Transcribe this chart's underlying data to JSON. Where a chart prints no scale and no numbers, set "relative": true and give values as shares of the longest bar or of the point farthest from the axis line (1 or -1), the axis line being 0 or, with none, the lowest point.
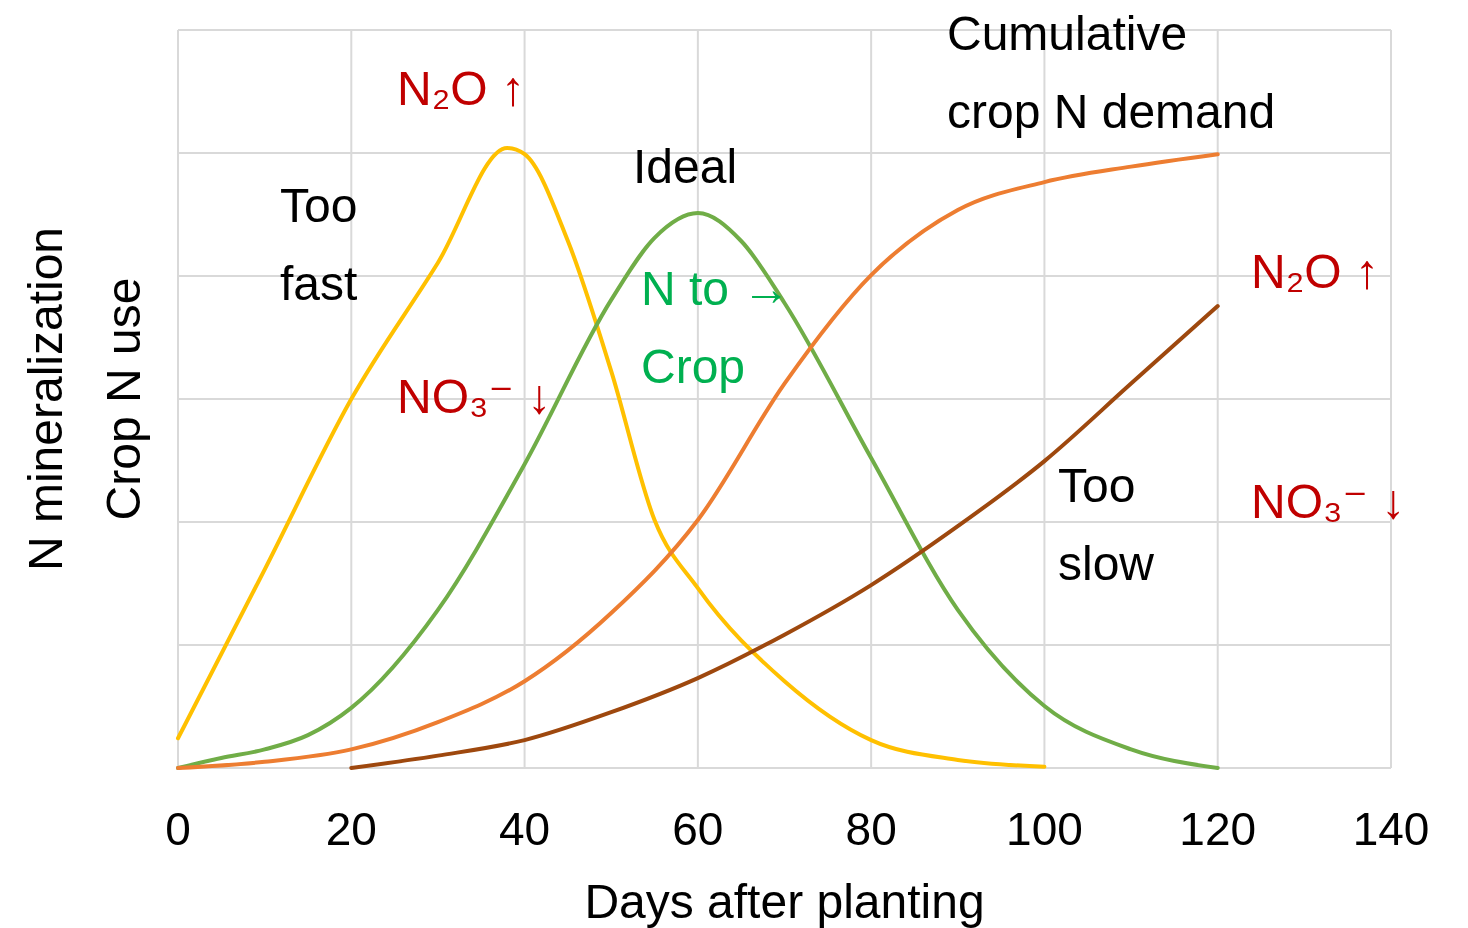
{
  "chart_data": {
    "type": "line",
    "relative": true,
    "xlabel": "Days after planting",
    "ylabel": "N mineralization\nCrop N use",
    "xlim": [
      0,
      140
    ],
    "xticks": [
      0,
      20,
      40,
      60,
      80,
      100,
      120,
      140
    ],
    "grid": true,
    "marker": "none",
    "line_style": "solid",
    "series": [
      {
        "color": "#ffc000",
        "x": [
          0,
          10,
          20,
          30,
          38,
          40,
          45,
          50,
          55,
          60,
          70,
          80,
          90,
          100
        ],
        "values": [
          0.048,
          0.32,
          0.595,
          0.815,
          1,
          0.99,
          0.85,
          0.64,
          0.4,
          0.29,
          0.14,
          0.045,
          0.013,
          0.002
        ]
      },
      {
        "color": "#70ad47",
        "x": [
          0,
          5,
          10,
          15,
          20,
          30,
          40,
          50,
          55,
          60,
          65,
          70,
          80,
          90,
          100,
          110,
          120
        ],
        "values": [
          0,
          0.016,
          0.03,
          0.053,
          0.097,
          0.255,
          0.49,
          0.755,
          0.855,
          0.895,
          0.85,
          0.75,
          0.5,
          0.255,
          0.1,
          0.03,
          0
        ]
      },
      {
        "color": "#ed7d31",
        "x": [
          0,
          10,
          20,
          30,
          40,
          50,
          60,
          70,
          80,
          90,
          100,
          110,
          120
        ],
        "values": [
          0,
          0.01,
          0.03,
          0.074,
          0.14,
          0.25,
          0.4,
          0.62,
          0.795,
          0.9,
          0.945,
          0.97,
          0.99
        ]
      },
      {
        "color": "#9e480e",
        "x": [
          20,
          30,
          40,
          50,
          60,
          70,
          80,
          90,
          100,
          110,
          120
        ],
        "values": [
          0,
          0.02,
          0.045,
          0.09,
          0.145,
          0.215,
          0.295,
          0.39,
          0.495,
          0.62,
          0.745
        ]
      }
    ],
    "annotations": [
      "N₂O ↑",
      "Too\nfast",
      "Ideal",
      "NO₃⁻ ↓",
      "N to →\nCrop",
      "Cumulative\ncrop N demand",
      "N₂O ↑",
      "Too\nslow",
      "NO₃⁻ ↓"
    ]
  }
}
